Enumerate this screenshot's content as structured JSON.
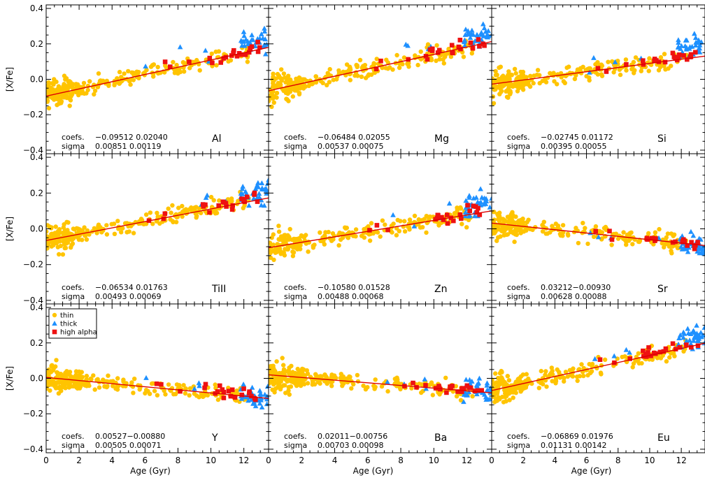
{
  "figure": {
    "xlabel": "Age (Gyr)",
    "ylabel": "[X/Fe]",
    "xticks": [
      0,
      2,
      4,
      6,
      8,
      10,
      12
    ],
    "yticks": [
      -0.4,
      -0.2,
      0.0,
      0.2,
      0.4
    ],
    "ytick_labels": [
      "−0.4",
      "−0.2",
      "0.0",
      "0.2",
      "0.4"
    ],
    "colors": {
      "thin": "#ffc400",
      "thick": "#1e90ff",
      "high_alpha": "#ee1111",
      "fit": "#dd0000"
    }
  },
  "legend": {
    "placement": "top-left of panel Y",
    "entries": [
      {
        "label": "thin",
        "marker": "circle",
        "color": "#ffc400"
      },
      {
        "label": "thick",
        "marker": "triangle",
        "color": "#1e90ff"
      },
      {
        "label": "high alpha",
        "marker": "square",
        "color": "#ee1111"
      }
    ]
  },
  "chart_data": [
    {
      "type": "scatter",
      "element": "Al",
      "coef_label": "coefs.",
      "coefs_text": "−0.09512 0.02040",
      "sigma_label": "sigma",
      "sigma_text": "0.00851 0.00119",
      "intercept": -0.09512,
      "slope": 0.0204,
      "xlim": [
        0,
        13.5
      ],
      "ylim": [
        -0.42,
        0.42
      ]
    },
    {
      "type": "scatter",
      "element": "Mg",
      "coef_label": "coefs.",
      "coefs_text": "−0.06484 0.02055",
      "sigma_label": "sigma",
      "sigma_text": "0.00537 0.00075",
      "intercept": -0.06484,
      "slope": 0.02055,
      "xlim": [
        0,
        13.5
      ],
      "ylim": [
        -0.42,
        0.42
      ]
    },
    {
      "type": "scatter",
      "element": "Si",
      "coef_label": "coefs.",
      "coefs_text": "−0.02745 0.01172",
      "sigma_label": "sigma",
      "sigma_text": "0.00395 0.00055",
      "intercept": -0.02745,
      "slope": 0.01172,
      "xlim": [
        0,
        13.5
      ],
      "ylim": [
        -0.42,
        0.42
      ]
    },
    {
      "type": "scatter",
      "element": "TiII",
      "coef_label": "coefs.",
      "coefs_text": "−0.06534 0.01763",
      "sigma_label": "sigma",
      "sigma_text": "0.00493 0.00069",
      "intercept": -0.06534,
      "slope": 0.01763,
      "xlim": [
        0,
        13.5
      ],
      "ylim": [
        -0.42,
        0.42
      ]
    },
    {
      "type": "scatter",
      "element": "Zn",
      "coef_label": "coefs.",
      "coefs_text": "−0.10580 0.01528",
      "sigma_label": "sigma",
      "sigma_text": "0.00488 0.00068",
      "intercept": -0.1058,
      "slope": 0.01528,
      "xlim": [
        0,
        13.5
      ],
      "ylim": [
        -0.42,
        0.42
      ]
    },
    {
      "type": "scatter",
      "element": "Sr",
      "coef_label": "coefs.",
      "coefs_text": "0.03212−0.00930",
      "sigma_label": "sigma",
      "sigma_text": "0.00628 0.00088",
      "intercept": 0.03212,
      "slope": -0.0093,
      "xlim": [
        0,
        13.5
      ],
      "ylim": [
        -0.42,
        0.42
      ]
    },
    {
      "type": "scatter",
      "element": "Y",
      "coef_label": "coefs.",
      "coefs_text": "0.00527−0.00880",
      "sigma_label": "sigma",
      "sigma_text": "0.00505 0.00071",
      "intercept": 0.00527,
      "slope": -0.0088,
      "xlim": [
        0,
        13.5
      ],
      "ylim": [
        -0.42,
        0.42
      ]
    },
    {
      "type": "scatter",
      "element": "Ba",
      "coef_label": "coefs.",
      "coefs_text": "0.02011−0.00756",
      "sigma_label": "sigma",
      "sigma_text": "0.00703 0.00098",
      "intercept": 0.02011,
      "slope": -0.00756,
      "xlim": [
        0,
        13.5
      ],
      "ylim": [
        -0.42,
        0.42
      ]
    },
    {
      "type": "scatter",
      "element": "Eu",
      "coef_label": "coefs.",
      "coefs_text": "−0.06869 0.01976",
      "sigma_label": "sigma",
      "sigma_text": "0.01131 0.00142",
      "intercept": -0.06869,
      "slope": 0.01976,
      "xlim": [
        0,
        13.5
      ],
      "ylim": [
        -0.42,
        0.42
      ]
    }
  ]
}
